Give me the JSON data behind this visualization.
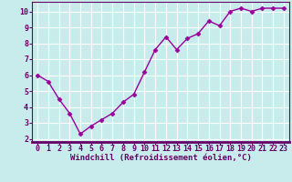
{
  "x": [
    0,
    1,
    2,
    3,
    4,
    5,
    6,
    7,
    8,
    9,
    10,
    11,
    12,
    13,
    14,
    15,
    16,
    17,
    18,
    19,
    20,
    21,
    22,
    23
  ],
  "y": [
    6.0,
    5.6,
    4.5,
    3.6,
    2.3,
    2.8,
    3.2,
    3.6,
    4.3,
    4.8,
    6.2,
    7.6,
    8.4,
    7.6,
    8.3,
    8.6,
    9.4,
    9.1,
    10.0,
    10.2,
    10.0,
    10.2,
    10.2,
    10.2
  ],
  "line_color": "#990099",
  "marker": "D",
  "marker_size": 2.5,
  "background_color": "#c8ecec",
  "grid_color": "#ffffff",
  "xlabel": "Windchill (Refroidissement éolien,°C)",
  "xlim": [
    -0.5,
    23.5
  ],
  "ylim": [
    1.8,
    10.6
  ],
  "yticks": [
    2,
    3,
    4,
    5,
    6,
    7,
    8,
    9,
    10
  ],
  "xticks": [
    0,
    1,
    2,
    3,
    4,
    5,
    6,
    7,
    8,
    9,
    10,
    11,
    12,
    13,
    14,
    15,
    16,
    17,
    18,
    19,
    20,
    21,
    22,
    23
  ],
  "tick_color": "#660066",
  "label_color": "#660066",
  "label_fontsize": 6.5,
  "tick_fontsize": 6,
  "line_width": 1.0,
  "spine_color": "#660066",
  "spine_bottom_color": "#660066"
}
